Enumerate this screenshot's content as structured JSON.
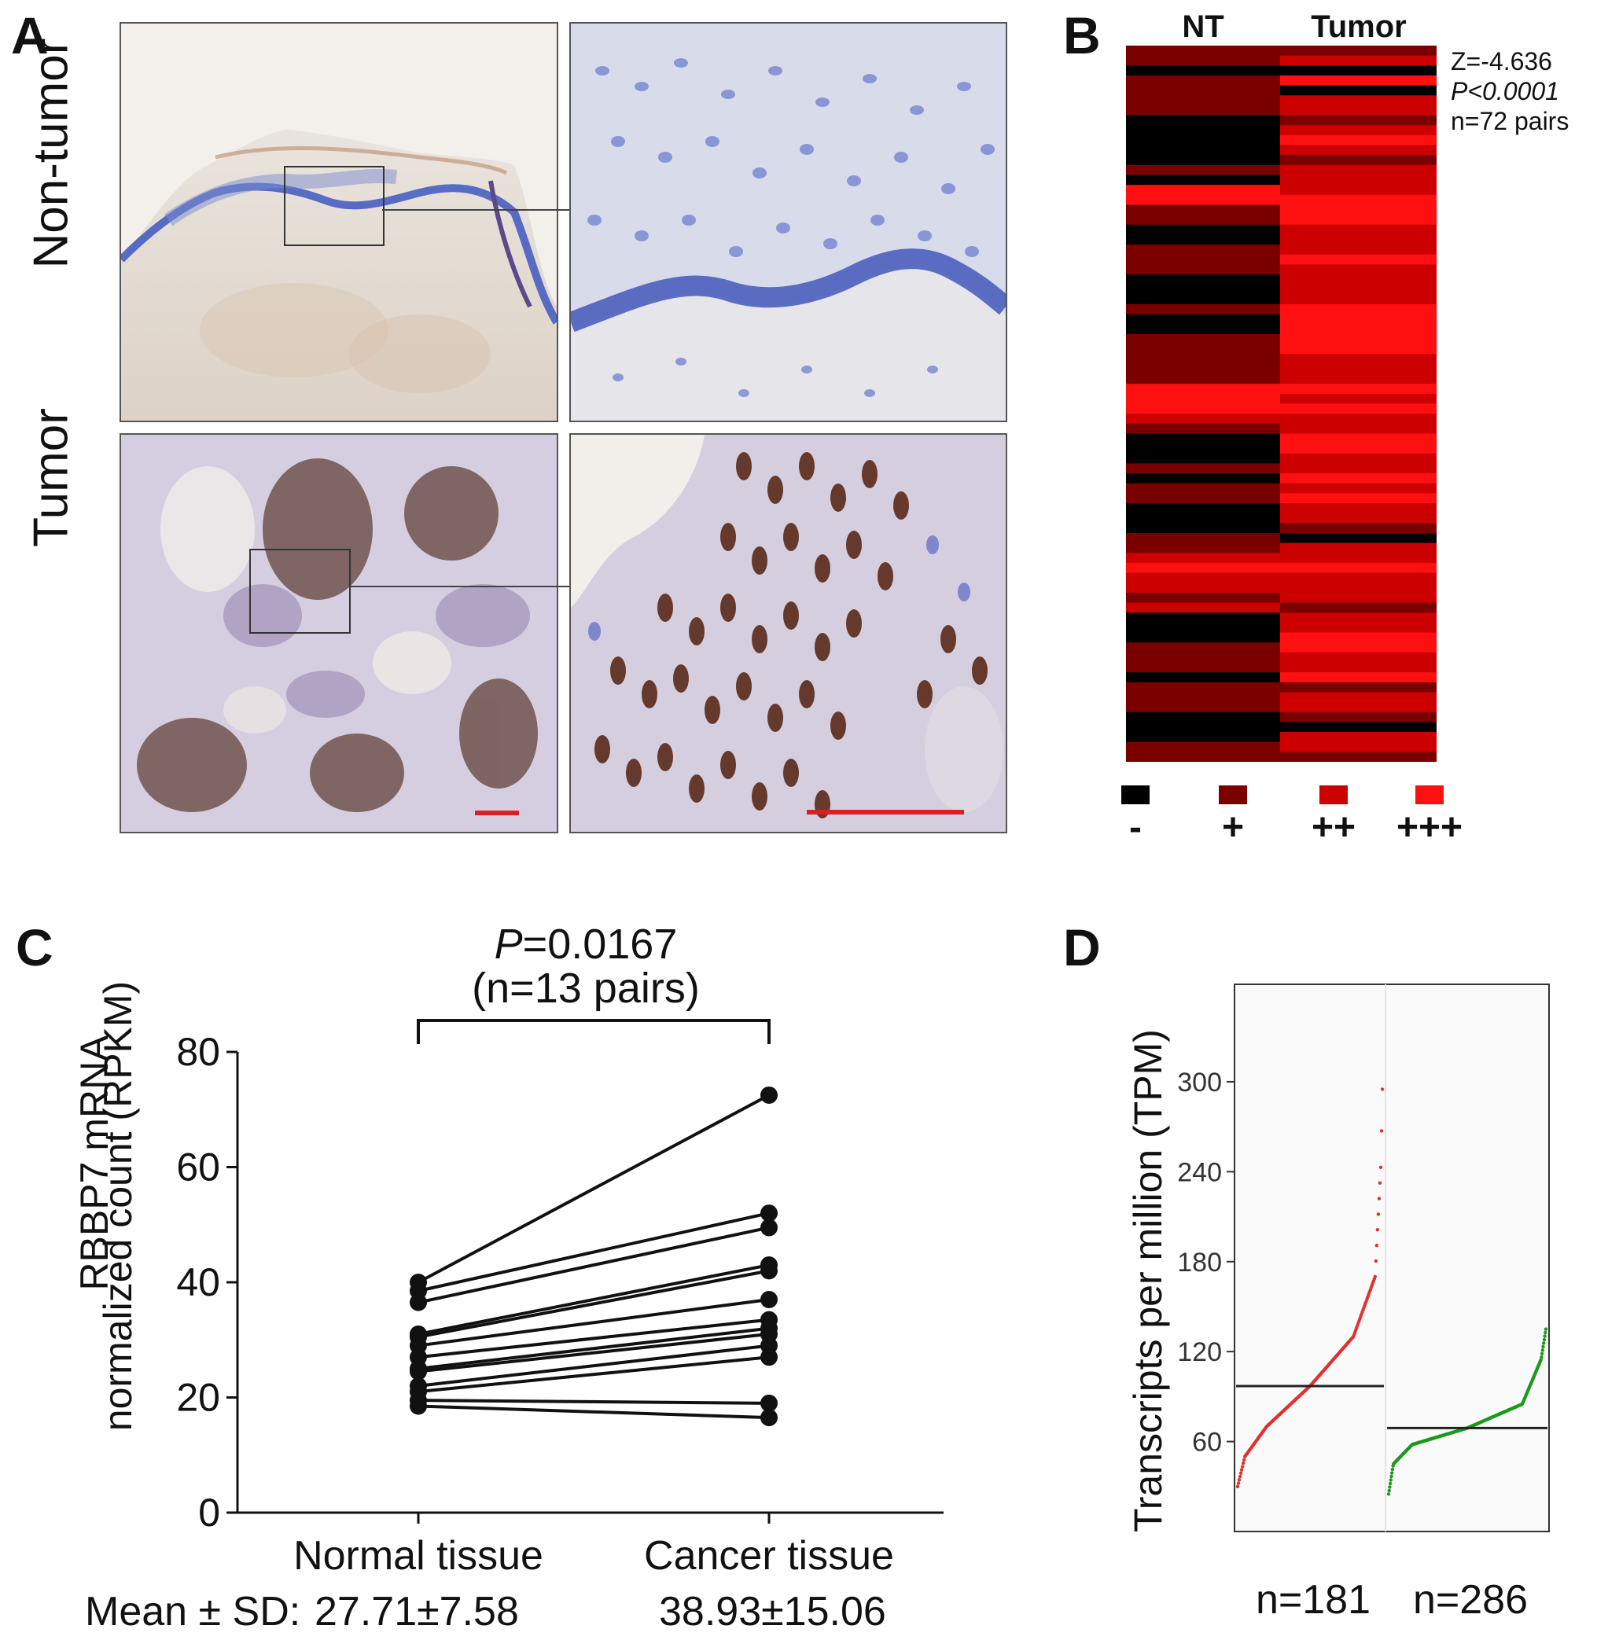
{
  "panels": {
    "A": {
      "letter": "A",
      "row_labels": [
        "Non-tumor",
        "Tumor"
      ]
    },
    "B": {
      "letter": "B",
      "col_labels": [
        "NT",
        "Tumor"
      ],
      "stats": [
        "Z=-4.636",
        "P<0.0001",
        "n=72 pairs"
      ],
      "legend": [
        {
          "label": "-",
          "color": "#000000"
        },
        {
          "label": "+",
          "color": "#7a0000"
        },
        {
          "label": "++",
          "color": "#cc0000"
        },
        {
          "label": "+++",
          "color": "#ff1010"
        }
      ]
    },
    "C": {
      "letter": "C",
      "pvalue_label": "P",
      "pvalue_value": "=0.0167",
      "n_label": "(n=13 pairs)",
      "ylabel_line1": "RBBP7 mRNA",
      "ylabel_line2": "normalized count (RPKM)",
      "mean_sd_label": "Mean ± SD:",
      "normal_stat": "27.71±7.58",
      "cancer_stat": "38.93±15.06"
    },
    "D": {
      "letter": "D",
      "ylabel": "Transcripts per million (TPM)",
      "group_labels": [
        "n=181",
        "n=286"
      ]
    }
  },
  "chart_data": [
    {
      "type": "heatmap",
      "panel": "B",
      "columns": [
        "NT",
        "Tumor"
      ],
      "levels": [
        "-",
        "+",
        "++",
        "+++"
      ],
      "level_colors": [
        "#000000",
        "#7a0000",
        "#cc0000",
        "#ff1010"
      ],
      "nt": [
        1,
        1,
        0,
        1,
        1,
        1,
        1,
        0,
        0,
        0,
        0,
        0,
        1,
        0,
        3,
        3,
        1,
        1,
        0,
        0,
        1,
        1,
        1,
        0,
        0,
        0,
        1,
        0,
        0,
        1,
        1,
        1,
        1,
        1,
        3,
        3,
        3,
        2,
        1,
        0,
        0,
        0,
        1,
        0,
        1,
        1,
        0,
        0,
        0,
        1,
        1,
        2,
        3,
        2,
        2,
        1,
        2,
        0,
        0,
        0,
        1,
        1,
        1,
        0,
        1,
        1,
        1,
        0,
        0,
        0,
        1,
        1
      ],
      "tumor": [
        1,
        2,
        0,
        3,
        0,
        2,
        2,
        1,
        2,
        3,
        2,
        1,
        2,
        2,
        2,
        3,
        3,
        3,
        2,
        2,
        2,
        3,
        2,
        2,
        2,
        2,
        3,
        3,
        3,
        3,
        3,
        2,
        2,
        2,
        3,
        2,
        3,
        2,
        2,
        3,
        3,
        2,
        2,
        3,
        2,
        3,
        2,
        2,
        1,
        0,
        2,
        2,
        3,
        2,
        2,
        2,
        1,
        2,
        2,
        3,
        3,
        2,
        2,
        3,
        1,
        2,
        2,
        1,
        0,
        2,
        2,
        1
      ],
      "title": "",
      "stats": "Z=-4.636, P<0.0001, n=72 pairs"
    },
    {
      "type": "line",
      "panel": "C",
      "categories": [
        "Normal tissue",
        "Cancer tissue"
      ],
      "ylabel": "RBBP7 mRNA normalized count (RPKM)",
      "ylim": [
        0,
        80
      ],
      "yticks": [
        0,
        20,
        40,
        60,
        80
      ],
      "pairs": [
        [
          40.0,
          72.5
        ],
        [
          38.5,
          52.0
        ],
        [
          36.5,
          49.5
        ],
        [
          31.0,
          43.0
        ],
        [
          30.5,
          42.0
        ],
        [
          29.0,
          37.0
        ],
        [
          27.0,
          33.5
        ],
        [
          25.0,
          32.0
        ],
        [
          24.5,
          31.0
        ],
        [
          22.0,
          29.0
        ],
        [
          21.0,
          27.0
        ],
        [
          19.5,
          19.0
        ],
        [
          18.5,
          16.5
        ]
      ],
      "annotation": "P=0.0167 (n=13 pairs)"
    },
    {
      "type": "scatter",
      "panel": "D",
      "ylabel": "Transcripts per million (TPM)",
      "yticks": [
        60,
        120,
        180,
        240,
        300
      ],
      "ylim": [
        0,
        365
      ],
      "groups": [
        {
          "label": "n=181",
          "count": 181,
          "color": "#e03030",
          "median": 97,
          "min": 30,
          "max": 295,
          "quantile_points": [
            [
              0,
              30
            ],
            [
              0.05,
              50
            ],
            [
              0.2,
              70
            ],
            [
              0.5,
              97
            ],
            [
              0.8,
              130
            ],
            [
              0.95,
              170
            ],
            [
              0.99,
              245
            ],
            [
              1.0,
              295
            ]
          ]
        },
        {
          "label": "n=286",
          "count": 286,
          "color": "#1a9a1a",
          "median": 69,
          "min": 25,
          "max": 135,
          "quantile_points": [
            [
              0,
              25
            ],
            [
              0.03,
              45
            ],
            [
              0.15,
              58
            ],
            [
              0.5,
              69
            ],
            [
              0.85,
              85
            ],
            [
              0.97,
              115
            ],
            [
              1.0,
              135
            ]
          ]
        }
      ]
    }
  ]
}
